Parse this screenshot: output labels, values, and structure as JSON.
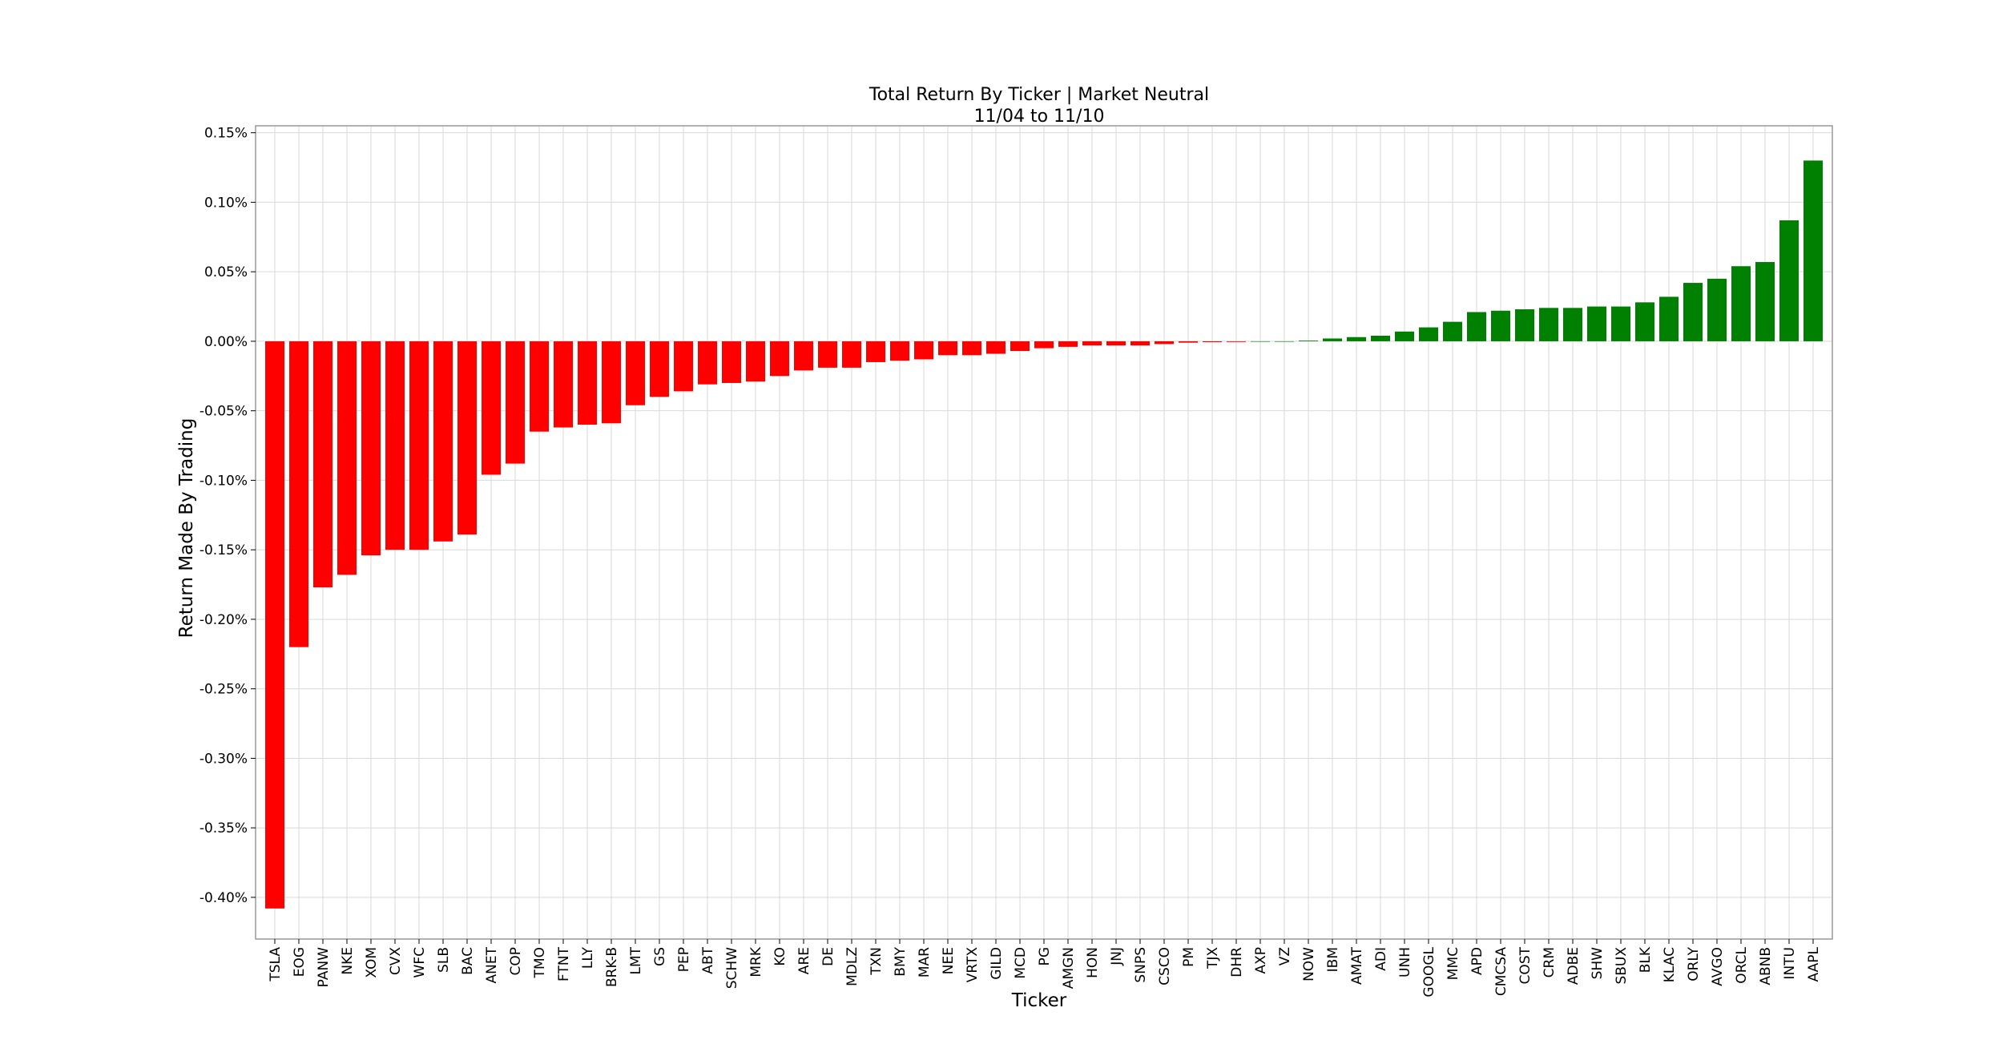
{
  "chart_data": {
    "type": "bar",
    "title": "Total Return By Ticker | Market Neutral",
    "subtitle": "11/04 to 11/10",
    "xlabel": "Ticker",
    "ylabel": "Return Made By Trading",
    "ylim": [
      -0.43,
      0.155
    ],
    "yticks": [
      0.15,
      0.1,
      0.05,
      0.0,
      -0.05,
      -0.1,
      -0.15,
      -0.2,
      -0.25,
      -0.3,
      -0.35,
      -0.4
    ],
    "ytick_labels": [
      "0.15%",
      "0.10%",
      "0.05%",
      "0.00%",
      "-0.05%",
      "-0.10%",
      "-0.15%",
      "-0.20%",
      "-0.25%",
      "-0.30%",
      "-0.35%",
      "-0.40%"
    ],
    "grid": true,
    "colors": {
      "negative": "#ff0000",
      "positive": "#008000",
      "grid": "#d9d9d9",
      "frame": "#999999"
    },
    "categories": [
      "TSLA",
      "EOG",
      "PANW",
      "NKE",
      "XOM",
      "CVX",
      "WFC",
      "SLB",
      "BAC",
      "ANET",
      "COP",
      "TMO",
      "FTNT",
      "LLY",
      "BRK-B",
      "LMT",
      "GS",
      "PEP",
      "ABT",
      "SCHW",
      "MRK",
      "KO",
      "ARE",
      "DE",
      "MDLZ",
      "TXN",
      "BMY",
      "MAR",
      "NEE",
      "VRTX",
      "GILD",
      "MCD",
      "PG",
      "AMGN",
      "HON",
      "JNJ",
      "SNPS",
      "CSCO",
      "PM",
      "TJX",
      "DHR",
      "AXP",
      "VZ",
      "NOW",
      "IBM",
      "AMAT",
      "ADI",
      "UNH",
      "GOOGL",
      "MMC",
      "APD",
      "CMCSA",
      "COST",
      "CRM",
      "ADBE",
      "SHW",
      "SBUX",
      "BLK",
      "KLAC",
      "ORLY",
      "AVGO",
      "ORCL",
      "ABNB",
      "INTU",
      "AAPL"
    ],
    "values": [
      -0.408,
      -0.22,
      -0.177,
      -0.168,
      -0.154,
      -0.15,
      -0.15,
      -0.144,
      -0.139,
      -0.096,
      -0.088,
      -0.065,
      -0.062,
      -0.06,
      -0.059,
      -0.046,
      -0.04,
      -0.036,
      -0.031,
      -0.03,
      -0.029,
      -0.025,
      -0.021,
      -0.019,
      -0.019,
      -0.015,
      -0.014,
      -0.013,
      -0.01,
      -0.01,
      -0.009,
      -0.007,
      -0.005,
      -0.004,
      -0.003,
      -0.003,
      -0.003,
      -0.002,
      -0.001,
      -0.0006,
      -0.0005,
      0.0,
      0.0,
      0.0005,
      0.002,
      0.003,
      0.004,
      0.007,
      0.01,
      0.014,
      0.021,
      0.022,
      0.023,
      0.024,
      0.024,
      0.025,
      0.025,
      0.028,
      0.032,
      0.042,
      0.045,
      0.054,
      0.057,
      0.087,
      0.13
    ]
  }
}
